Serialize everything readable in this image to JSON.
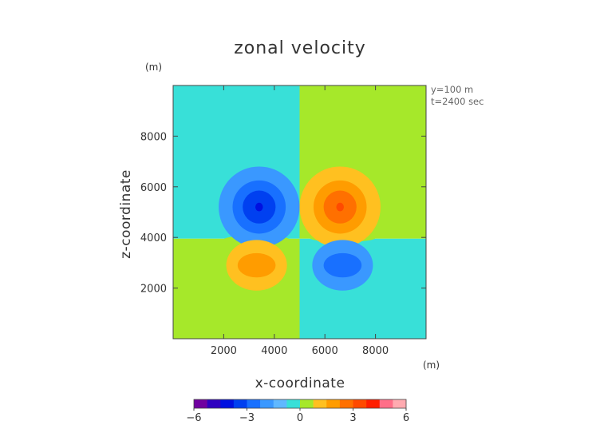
{
  "chart_data": {
    "type": "heatmap",
    "title": "zonal velocity",
    "xlabel": "x-coordinate",
    "ylabel": "z-coordinate",
    "x_unit": "(m)",
    "y_unit": "(m)",
    "annotations": [
      "y=100 m",
      "t=2400 sec"
    ],
    "xlim": [
      0,
      10000
    ],
    "ylim": [
      0,
      10000
    ],
    "x_ticks": [
      2000,
      4000,
      6000,
      8000
    ],
    "y_ticks": [
      2000,
      4000,
      6000,
      8000
    ],
    "x_tick_labels": [
      "2000",
      "4000",
      "6000",
      "8000"
    ],
    "y_tick_labels": [
      "2000",
      "4000",
      "6000",
      "8000"
    ],
    "grid": false,
    "colorbar": {
      "placement": "bottom",
      "min": -6,
      "max": 6,
      "ticks": [
        -6,
        -3,
        0,
        3,
        6
      ],
      "tick_labels": [
        "−6",
        "−3",
        "0",
        "3",
        "6"
      ],
      "colors": [
        "#7000a0",
        "#3000c0",
        "#0010e0",
        "#0040f0",
        "#1870ff",
        "#3a98ff",
        "#60b8ff",
        "#38e0d8",
        "#a6e82a",
        "#ffc020",
        "#ff9c00",
        "#ff7000",
        "#ff4a00",
        "#ff1e00",
        "#ff6e88",
        "#ffaab0"
      ]
    },
    "background_levels": [
      {
        "region": "upper-left",
        "color": "#38e0d8"
      },
      {
        "region": "upper-right",
        "color": "#a6e82a"
      },
      {
        "region": "lower-left",
        "color": "#a6e82a"
      },
      {
        "region": "lower-right",
        "color": "#38e0d8"
      }
    ],
    "features": [
      {
        "name": "upper-left-negative",
        "cx": 3400,
        "cz": 5200,
        "sign": "negative",
        "peak": -5,
        "levels": [
          {
            "rx": 1600,
            "rz": 1600,
            "color": "#3a98ff"
          },
          {
            "rx": 1050,
            "rz": 1050,
            "color": "#1870ff"
          },
          {
            "rx": 650,
            "rz": 650,
            "color": "#0040f0"
          },
          {
            "rx": 150,
            "rz": 170,
            "color": "#0010e0"
          }
        ]
      },
      {
        "name": "upper-right-positive",
        "cx": 6600,
        "cz": 5200,
        "sign": "positive",
        "peak": 5,
        "levels": [
          {
            "rx": 1600,
            "rz": 1600,
            "color": "#ffc020"
          },
          {
            "rx": 1050,
            "rz": 1050,
            "color": "#ff9c00"
          },
          {
            "rx": 650,
            "rz": 650,
            "color": "#ff7000"
          },
          {
            "rx": 150,
            "rz": 170,
            "color": "#ff4a00"
          }
        ]
      },
      {
        "name": "lower-left-positive",
        "cx": 3300,
        "cz": 2900,
        "sign": "positive",
        "peak": 3,
        "levels": [
          {
            "rx": 1200,
            "rz": 1000,
            "color": "#ffc020"
          },
          {
            "rx": 750,
            "rz": 480,
            "color": "#ff9c00"
          }
        ]
      },
      {
        "name": "lower-right-negative",
        "cx": 6700,
        "cz": 2900,
        "sign": "negative",
        "peak": -3,
        "levels": [
          {
            "rx": 1200,
            "rz": 1000,
            "color": "#3a98ff"
          },
          {
            "rx": 750,
            "rz": 480,
            "color": "#1870ff"
          }
        ]
      }
    ]
  }
}
